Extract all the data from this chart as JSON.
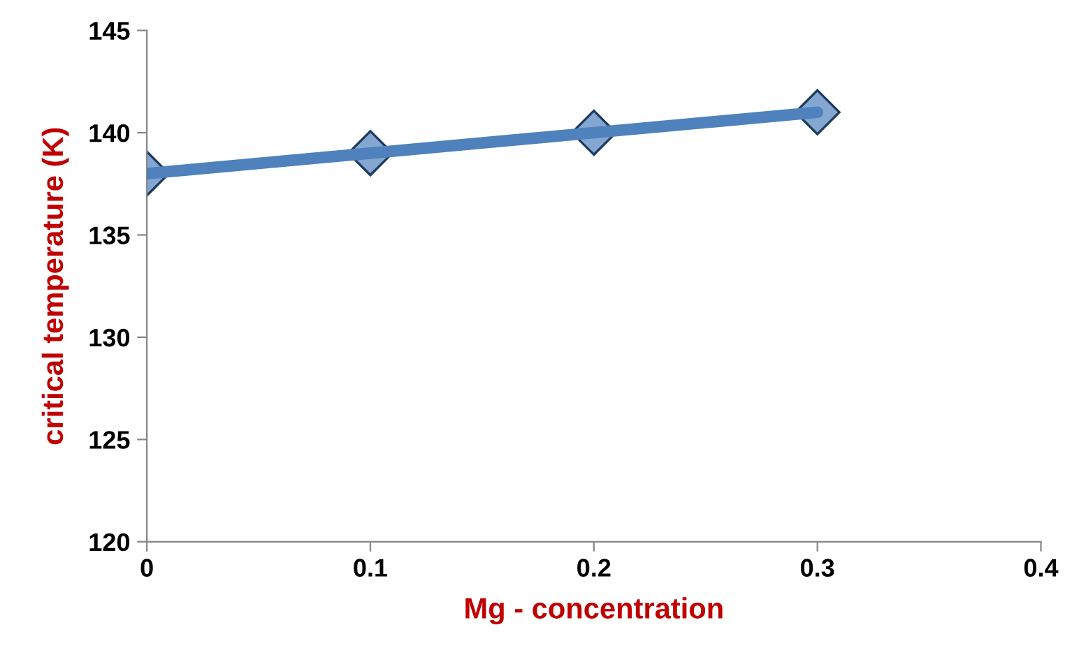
{
  "chart_data": {
    "type": "line",
    "xlabel": "Mg - concentration",
    "ylabel": "critical temperature (K)",
    "x": [
      0,
      0.1,
      0.2,
      0.3
    ],
    "series": [
      {
        "color": "#4f81bd",
        "values": [
          138,
          139,
          140,
          141
        ]
      }
    ],
    "xlim": [
      0,
      0.4
    ],
    "xticks": [
      0,
      0.1,
      0.2,
      0.3,
      0.4
    ],
    "ylim": [
      120,
      145
    ],
    "yticks": [
      120,
      125,
      130,
      135,
      140,
      145
    ],
    "marker": "diamond",
    "line_style": "solid",
    "grid": false,
    "legend": false
  }
}
